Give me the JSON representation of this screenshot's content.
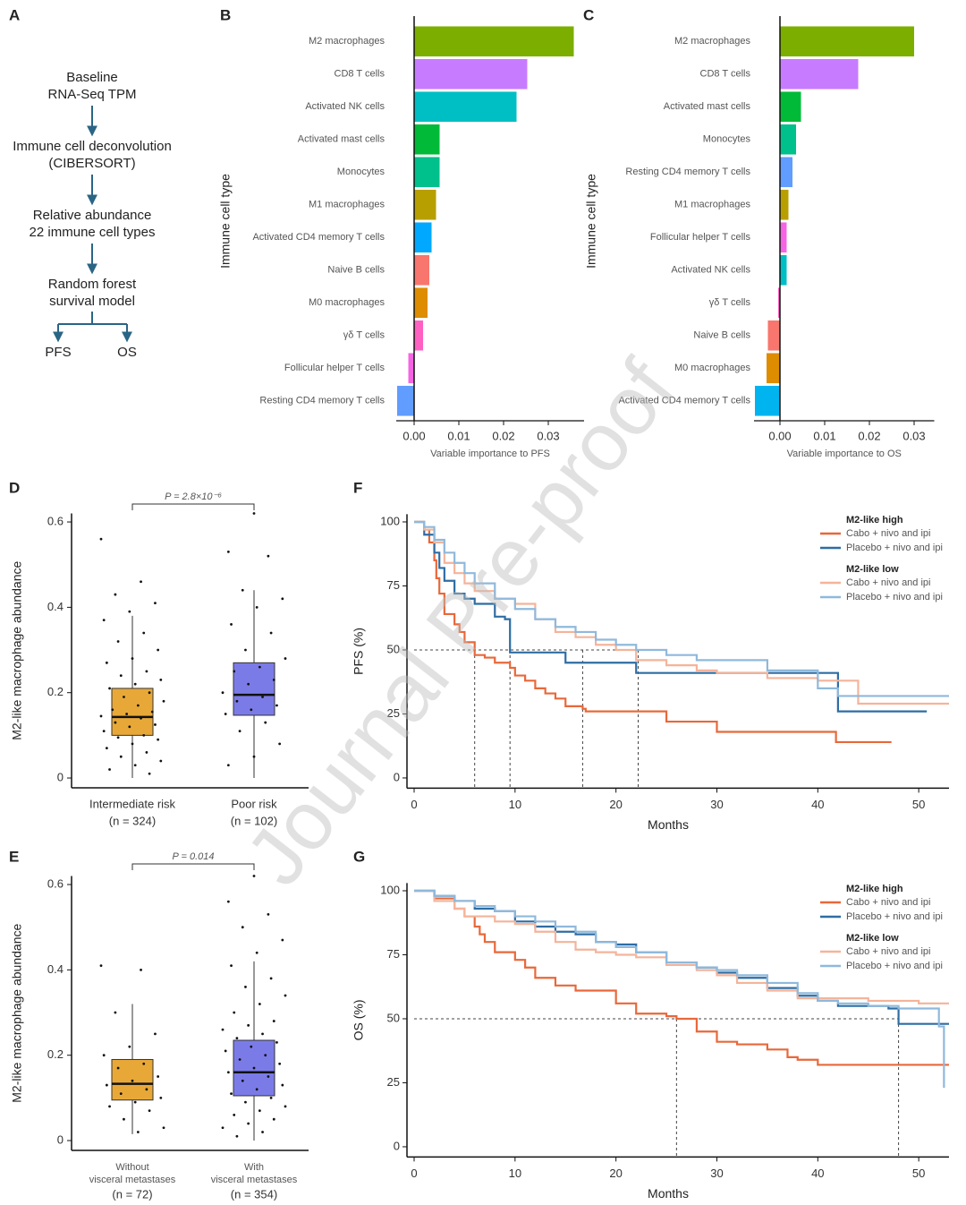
{
  "panel_labels": [
    "A",
    "B",
    "C",
    "D",
    "E",
    "F",
    "G"
  ],
  "watermark": "Journal Pre-proof",
  "diagram": {
    "panel": "A",
    "nodes": [
      [
        "Baseline",
        "RNA-Seq TPM"
      ],
      [
        "Immune cell deconvolution",
        "(CIBERSORT)"
      ],
      [
        "Relative abundance",
        "22 immune cell types"
      ],
      [
        "Random forest",
        "survival model"
      ]
    ],
    "outcomes": [
      "PFS",
      "OS"
    ]
  },
  "chart_data": [
    {
      "panel": "B",
      "type": "hbar",
      "ylabel": "Immune cell type",
      "xlabel": "Variable importance to PFS",
      "categories": [
        "M2 macrophages",
        "CD8 T cells",
        "Activated NK cells",
        "Activated mast cells",
        "Monocytes",
        "M1 macrophages",
        "Activated CD4 memory T cells",
        "Naive B cells",
        "M0 macrophages",
        "γδ T cells",
        "Follicular helper T cells",
        "Resting CD4 memory T cells"
      ],
      "values": [
        0.0357,
        0.0253,
        0.0229,
        0.0057,
        0.0057,
        0.0049,
        0.0039,
        0.0034,
        0.003,
        0.002,
        -0.0013,
        -0.0038
      ],
      "colors": [
        "#7cae00",
        "#c77cff",
        "#00bfc4",
        "#00ba38",
        "#00c08b",
        "#b79f00",
        "#00a9ff",
        "#f8766d",
        "#de8c00",
        "#ff61c3",
        "#f564e3",
        "#619cff"
      ],
      "xlim": [
        -0.004,
        0.038
      ],
      "xticks": [
        {
          "value": 0,
          "label": "0.00"
        },
        0.01,
        0.02,
        0.03
      ]
    },
    {
      "panel": "C",
      "type": "hbar",
      "ylabel": "Immune cell type",
      "xlabel": "Variable importance to OS",
      "categories": [
        "M2 macrophages",
        "CD8 T cells",
        "Activated mast cells",
        "Monocytes",
        "Resting CD4 memory T cells",
        "M1 macrophages",
        "Follicular helper T cells",
        "Activated NK cells",
        "γδ T cells",
        "Naive B cells",
        "M0 macrophages",
        "Activated CD4 memory T cells"
      ],
      "values": [
        0.03,
        0.0175,
        0.0047,
        0.0036,
        0.0028,
        0.0019,
        0.0015,
        0.0015,
        -0.0004,
        -0.0027,
        -0.003,
        -0.0056
      ],
      "colors": [
        "#7cae00",
        "#c77cff",
        "#00ba38",
        "#00c08b",
        "#619cff",
        "#b79f00",
        "#f564e3",
        "#00bfc4",
        "#ff61c3",
        "#f8766d",
        "#de8c00",
        "#00b4f0"
      ],
      "xlim": [
        -0.0058,
        0.0345
      ],
      "xticks": [
        {
          "value": 0,
          "label": "0.00"
        },
        0.01,
        0.02,
        0.03
      ]
    },
    {
      "panel": "D",
      "type": "box",
      "ylabel": "M2-like macrophage abundance",
      "pvalue": "P = 2.8×10⁻⁶",
      "categories": [
        [
          "Intermediate risk"
        ],
        [
          "Poor risk"
        ]
      ],
      "group_sizes": [
        "(n = 324)",
        "(n = 102)"
      ],
      "ylim": [
        -0.023,
        0.62
      ],
      "yticks": [
        0,
        0.2,
        0.4,
        0.6
      ],
      "groups": [
        {
          "color": "#e8a838",
          "box": {
            "low": 0,
            "q1": 0.1,
            "median": 0.143,
            "q3": 0.21,
            "high": 0.38
          },
          "points": [
            0.56,
            0.46,
            0.43,
            0.41,
            0.39,
            0.37,
            0.34,
            0.32,
            0.3,
            0.28,
            0.27,
            0.25,
            0.24,
            0.23,
            0.22,
            0.21,
            0.2,
            0.19,
            0.18,
            0.17,
            0.16,
            0.155,
            0.15,
            0.145,
            0.14,
            0.13,
            0.125,
            0.12,
            0.11,
            0.1,
            0.095,
            0.09,
            0.08,
            0.07,
            0.06,
            0.05,
            0.04,
            0.03,
            0.02,
            0.01
          ]
        },
        {
          "color": "#7b7be8",
          "box": {
            "low": 0,
            "q1": 0.147,
            "median": 0.195,
            "q3": 0.27,
            "high": 0.44
          },
          "points": [
            0.62,
            0.53,
            0.52,
            0.44,
            0.42,
            0.4,
            0.36,
            0.34,
            0.3,
            0.28,
            0.26,
            0.25,
            0.23,
            0.22,
            0.2,
            0.19,
            0.18,
            0.17,
            0.16,
            0.15,
            0.13,
            0.11,
            0.08,
            0.05,
            0.03
          ]
        }
      ]
    },
    {
      "panel": "E",
      "type": "box",
      "ylabel": "M2-like macrophage abundance",
      "pvalue": "P = 0.014",
      "categories": [
        [
          "Without",
          "visceral metastases"
        ],
        [
          "With",
          "visceral metastases"
        ]
      ],
      "group_sizes": [
        "(n = 72)",
        "(n = 354)"
      ],
      "ylim": [
        -0.023,
        0.62
      ],
      "yticks": [
        0,
        0.2,
        0.4,
        0.6
      ],
      "groups": [
        {
          "color": "#e8a838",
          "box": {
            "low": 0.015,
            "q1": 0.095,
            "median": 0.133,
            "q3": 0.19,
            "high": 0.32
          },
          "points": [
            0.41,
            0.4,
            0.3,
            0.25,
            0.22,
            0.2,
            0.18,
            0.17,
            0.15,
            0.14,
            0.13,
            0.12,
            0.11,
            0.1,
            0.09,
            0.08,
            0.07,
            0.05,
            0.03,
            0.02
          ]
        },
        {
          "color": "#7b7be8",
          "box": {
            "low": 0,
            "q1": 0.105,
            "median": 0.16,
            "q3": 0.235,
            "high": 0.42
          },
          "points": [
            0.62,
            0.56,
            0.53,
            0.5,
            0.47,
            0.44,
            0.41,
            0.38,
            0.36,
            0.34,
            0.32,
            0.3,
            0.28,
            0.27,
            0.26,
            0.25,
            0.24,
            0.23,
            0.22,
            0.21,
            0.2,
            0.19,
            0.18,
            0.17,
            0.16,
            0.15,
            0.14,
            0.13,
            0.12,
            0.11,
            0.1,
            0.09,
            0.08,
            0.07,
            0.06,
            0.05,
            0.04,
            0.03,
            0.02,
            0.01
          ]
        }
      ]
    },
    {
      "panel": "F",
      "type": "km",
      "ylabel": "PFS (%)",
      "xlabel": "Months",
      "xlim": [
        0,
        53
      ],
      "xticks": [
        0,
        10,
        20,
        30,
        40,
        50
      ],
      "ylim": [
        -4,
        103
      ],
      "yticks": [
        0,
        25,
        50,
        75,
        100
      ],
      "median_lines": {
        "y": 50,
        "x": [
          6,
          9.5,
          16.7,
          22.2
        ]
      },
      "legend_groups": [
        {
          "title": "M2-like high",
          "series": [
            {
              "name": "Cabo + nivo and ipi",
              "color": "#e8683a",
              "x": [
                0,
                1,
                1.5,
                2,
                2.2,
                2.5,
                3,
                4,
                4.5,
                5,
                6,
                7,
                8,
                9.5,
                10,
                11,
                12,
                13,
                14,
                15,
                16.7,
                17,
                20,
                22,
                25,
                26,
                30,
                35,
                40,
                41.8,
                42,
                47.3
              ],
              "values": [
                100,
                97,
                92,
                85,
                78,
                72,
                64,
                60,
                57,
                53,
                48,
                47,
                45,
                43,
                40,
                38,
                35,
                33,
                31,
                28,
                27,
                26,
                26,
                26,
                22,
                22,
                18,
                18,
                18,
                14,
                14,
                14
              ]
            },
            {
              "name": "Placebo + nivo and ipi",
              "color": "#2e6da4",
              "x": [
                0,
                1,
                2,
                2.5,
                3,
                4,
                5,
                6,
                7,
                8,
                9,
                9.5,
                12,
                14,
                15,
                16,
                17,
                20,
                22,
                25,
                30,
                40,
                42,
                45,
                47,
                50.8
              ],
              "values": [
                100,
                95,
                88,
                82,
                77,
                72,
                70,
                68,
                68,
                63,
                62,
                49,
                49,
                49,
                45,
                45,
                45,
                45,
                41,
                41,
                41,
                41,
                26,
                26,
                26,
                26
              ]
            }
          ]
        },
        {
          "title": "M2-like low",
          "series": [
            {
              "name": "Cabo + nivo and ipi",
              "color": "#f4b49a",
              "x": [
                0,
                1,
                2,
                3,
                4,
                5,
                6,
                8,
                10,
                12,
                14,
                16,
                18,
                20,
                22,
                25,
                28,
                30,
                35,
                40,
                44,
                50,
                53
              ],
              "values": [
                100,
                97,
                92,
                84,
                80,
                76,
                73,
                70,
                68,
                62,
                57,
                55,
                52,
                50,
                46,
                44,
                42,
                41,
                39,
                38,
                29,
                29,
                29
              ]
            },
            {
              "name": "Placebo + nivo and ipi",
              "color": "#8fb9dc",
              "x": [
                0,
                1,
                2,
                3,
                4,
                5,
                6,
                8,
                10,
                12,
                14,
                16,
                18,
                20,
                22,
                25,
                28,
                30,
                35,
                40,
                42,
                45,
                50,
                53
              ],
              "values": [
                100,
                98,
                93,
                88,
                84,
                80,
                76,
                70,
                66,
                62,
                59,
                57,
                54,
                52,
                50,
                48,
                46,
                46,
                42,
                35,
                32,
                32,
                32,
                32
              ]
            }
          ]
        }
      ]
    },
    {
      "panel": "G",
      "type": "km",
      "ylabel": "OS (%)",
      "xlabel": "Months",
      "xlim": [
        0,
        53
      ],
      "xticks": [
        0,
        10,
        20,
        30,
        40,
        50
      ],
      "ylim": [
        -4,
        103
      ],
      "yticks": [
        0,
        25,
        50,
        75,
        100
      ],
      "median_lines": {
        "y": 50,
        "x": [
          26,
          48
        ]
      },
      "legend_groups": [
        {
          "title": "M2-like high",
          "series": [
            {
              "name": "Cabo + nivo and ipi",
              "color": "#e8683a",
              "x": [
                0,
                2,
                4,
                5,
                6,
                6.5,
                7,
                8,
                9,
                10,
                11,
                12,
                14,
                16,
                18,
                20,
                22,
                25,
                26,
                28,
                30,
                32,
                35,
                37,
                38,
                40,
                45,
                53
              ],
              "values": [
                100,
                97,
                93,
                90,
                86,
                83,
                80,
                76,
                76,
                73,
                70,
                66,
                63,
                61,
                61,
                56,
                52,
                51,
                50,
                45,
                41,
                40,
                38,
                35,
                34,
                32,
                32,
                32
              ]
            },
            {
              "name": "Placebo + nivo and ipi",
              "color": "#2e6da4",
              "x": [
                0,
                2,
                4,
                6,
                8,
                10,
                12,
                14,
                16,
                18,
                20,
                22,
                25,
                28,
                30,
                32,
                35,
                38,
                40,
                42,
                45,
                47,
                48,
                50,
                53
              ],
              "values": [
                100,
                98,
                96,
                93,
                92,
                88,
                86,
                84,
                83,
                80,
                79,
                76,
                72,
                70,
                68,
                66,
                62,
                59,
                57,
                55,
                55,
                54,
                48,
                48,
                48
              ]
            }
          ]
        },
        {
          "title": "M2-like low",
          "series": [
            {
              "name": "Cabo + nivo and ipi",
              "color": "#f4b49a",
              "x": [
                0,
                2,
                4,
                5,
                8,
                10,
                12,
                14,
                16,
                18,
                20,
                22,
                25,
                28,
                30,
                32,
                35,
                38,
                40,
                45,
                50,
                53
              ],
              "values": [
                100,
                96,
                93,
                90,
                88,
                87,
                84,
                80,
                77,
                76,
                75,
                74,
                71,
                69,
                67,
                64,
                61,
                58,
                58,
                57,
                56,
                56
              ]
            },
            {
              "name": "Placebo + nivo and ipi",
              "color": "#8fb9dc",
              "x": [
                0,
                2,
                4,
                6,
                8,
                10,
                12,
                14,
                16,
                18,
                20,
                22,
                25,
                28,
                30,
                32,
                35,
                38,
                40,
                42,
                45,
                48,
                50,
                52,
                52.5
              ],
              "values": [
                100,
                98,
                96,
                94,
                92,
                90,
                88,
                86,
                84,
                80,
                78,
                76,
                72,
                70,
                69,
                67,
                64,
                60,
                57,
                56,
                55,
                54,
                54,
                47,
                23
              ]
            }
          ]
        }
      ]
    }
  ]
}
